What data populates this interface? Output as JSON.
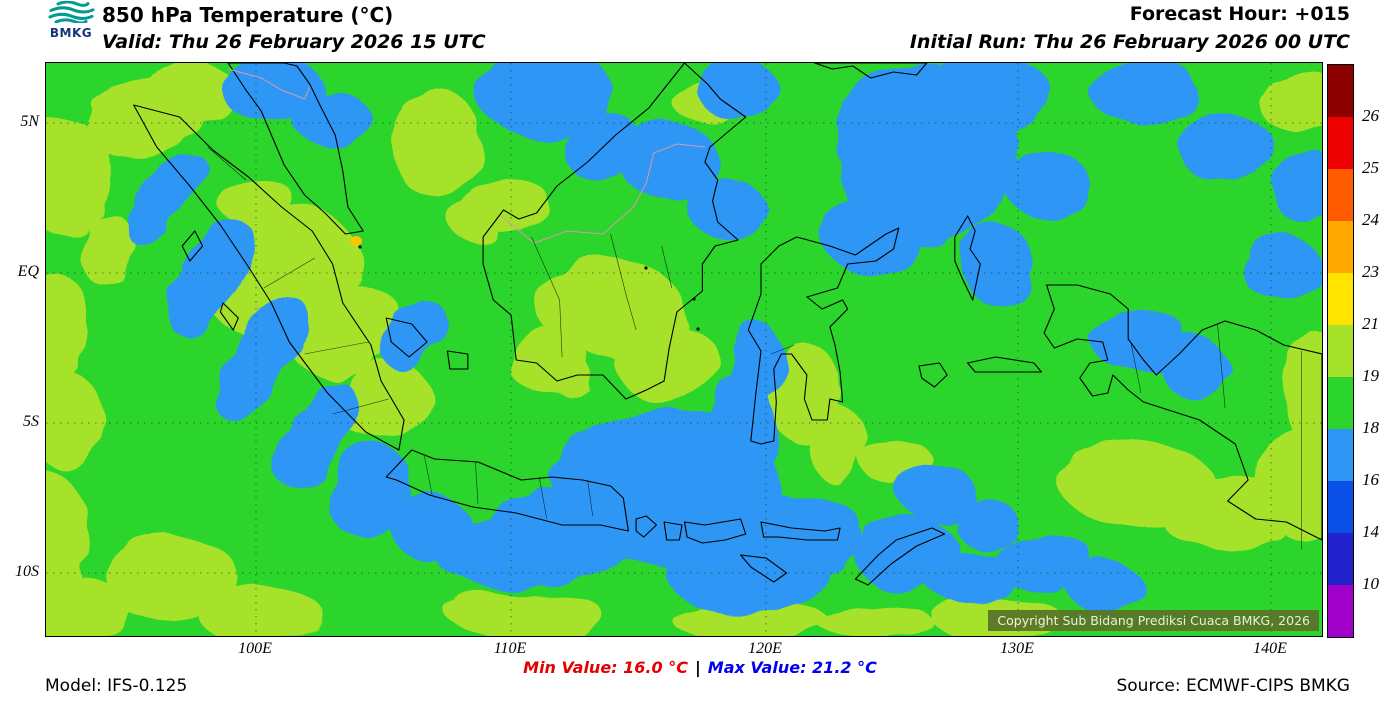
{
  "header": {
    "logo": {
      "text": "BMKG"
    },
    "title": "850 hPa Temperature (°C)",
    "valid": "Valid: Thu 26 February 2026 15 UTC",
    "forecast_hour": "Forecast Hour: +015",
    "initial_run": "Initial Run: Thu 26 February 2026 00 UTC"
  },
  "map": {
    "copyright": "Copyright Sub Bidang Prediksi Cuaca BMKG, 2026",
    "x_axis_labels": [
      "100E",
      "110E",
      "120E",
      "130E",
      "140E"
    ],
    "y_axis_labels": [
      "5N",
      "EQ",
      "5S",
      "10S"
    ]
  },
  "colorbar": {
    "segments": [
      "#8c0000",
      "#ec0000",
      "#ff5a00",
      "#ffa800",
      "#ffe400",
      "#a6e22a",
      "#2bd52b",
      "#2e96f5",
      "#0a50e6",
      "#2222cc",
      "#a000c8"
    ],
    "labels": [
      "26",
      "25",
      "24",
      "23",
      "21",
      "19",
      "18",
      "16",
      "14",
      "10"
    ]
  },
  "footer": {
    "model": "Model: IFS-0.125",
    "min_label": "Min Value:",
    "min_value": "16.0 °C",
    "separator": "|",
    "max_label": "Max Value:",
    "max_value": "21.2 °C",
    "source": "Source: ECMWF-CIPS BMKG"
  },
  "colors": {
    "field_green": "#2bd52b",
    "field_yellow_green": "#a6e22a",
    "field_blue": "#2e96f5",
    "warm_spot": "#ffc400",
    "min_text": "#e50000",
    "max_text": "#0000ee",
    "copyright_bg": "#5a7428",
    "copyright_text": "#f2f6e4",
    "logo": "#009b93",
    "logo_text": "#16347c"
  }
}
